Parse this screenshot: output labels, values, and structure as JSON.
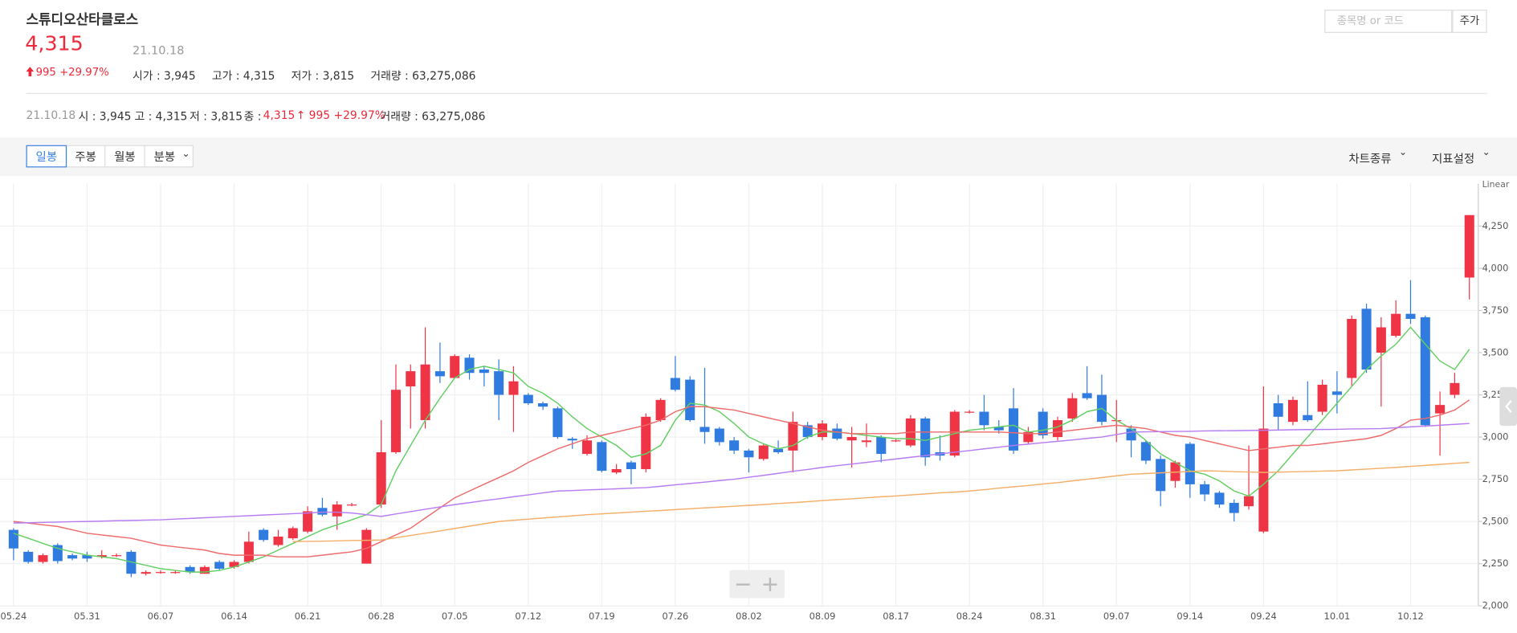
{
  "header": {
    "title": "스튜디오산타클로스",
    "price": "4,315",
    "date": "21.10.18",
    "change": "995 +29.97%",
    "stats": [
      "시가 : 3,945",
      "고가 : 4,315",
      "저가 : 3,815",
      "거래량 : 63,275,086"
    ],
    "search_placeholder": "종목명 or 코드",
    "search_button": "주가"
  },
  "summary": {
    "date": "21.10.18",
    "open": "시 : 3,945",
    "high": "고 : 4,315",
    "low": "저 : 3,815",
    "close_label": "종 :",
    "close": "4,315",
    "change": "↑ 995 +29.97%",
    "volume": "거래량 : 63,275,086"
  },
  "toolbar": {
    "tabs": [
      "일봉",
      "주봉",
      "월봉",
      "분봉"
    ],
    "chart_type": "차트종류",
    "indicator": "지표설정"
  },
  "chart_data": {
    "type": "candlestick",
    "scale_label": "Linear",
    "categories": [
      "05.24",
      null,
      null,
      null,
      null,
      "05.31",
      null,
      null,
      null,
      null,
      "06.07",
      null,
      null,
      null,
      null,
      "06.14",
      null,
      null,
      null,
      null,
      "06.21",
      null,
      null,
      null,
      null,
      "06.28",
      null,
      null,
      null,
      null,
      "07.05",
      null,
      null,
      null,
      null,
      "07.12",
      null,
      null,
      null,
      null,
      "07.19",
      null,
      null,
      null,
      null,
      "07.26",
      null,
      null,
      null,
      null,
      "08.02",
      null,
      null,
      null,
      null,
      "08.09",
      null,
      null,
      null,
      null,
      "08.17",
      null,
      null,
      null,
      null,
      "08.24",
      null,
      null,
      null,
      null,
      "08.31",
      null,
      null,
      null,
      null,
      "09.07",
      null,
      null,
      null,
      null,
      "09.14",
      null,
      null,
      null,
      null,
      "09.24",
      null,
      null,
      null,
      null,
      "10.01",
      null,
      null,
      null,
      null,
      "10.12",
      null,
      null,
      null,
      null
    ],
    "open": [
      2450,
      2320,
      2260,
      2360,
      2300,
      2300,
      2290,
      2300,
      2320,
      2190,
      2200,
      2200,
      2230,
      2190,
      2260,
      2230,
      2260,
      2450,
      2360,
      2400,
      2440,
      2580,
      2530,
      2600,
      2250,
      2600,
      2910,
      3300,
      3100,
      3390,
      3350,
      3470,
      3400,
      3390,
      3250,
      3250,
      3200,
      3170,
      2990,
      2900,
      2970,
      2790,
      2850,
      2810,
      3100,
      3350,
      3340,
      3060,
      3050,
      2980,
      2920,
      2870,
      2930,
      2920,
      3070,
      3000,
      3050,
      2980,
      2970,
      3000,
      2980,
      2950,
      3110,
      2910,
      2890,
      3150,
      3150,
      3060,
      3170,
      2970,
      3150,
      3000,
      3110,
      3260,
      3250,
      3100,
      3050,
      2970,
      2870,
      2740,
      2960,
      2720,
      2670,
      2610,
      2590,
      2440,
      3200,
      3090,
      3130,
      3150,
      3270,
      3350,
      3760,
      3500,
      3600,
      3730,
      3710,
      3140,
      3250,
      3945
    ],
    "high": [
      2460,
      2330,
      2310,
      2370,
      2310,
      2320,
      2330,
      2310,
      2330,
      2210,
      2210,
      2210,
      2240,
      2240,
      2270,
      2270,
      2440,
      2460,
      2450,
      2470,
      2590,
      2640,
      2620,
      2610,
      2460,
      3100,
      3430,
      3430,
      3650,
      3560,
      3490,
      3490,
      3420,
      3460,
      3420,
      3260,
      3210,
      3180,
      3000,
      3010,
      2980,
      2840,
      2860,
      3140,
      3230,
      3480,
      3360,
      3410,
      3060,
      3000,
      2930,
      2960,
      2980,
      3150,
      3090,
      3100,
      3080,
      3060,
      3080,
      3010,
      2990,
      3130,
      3120,
      3010,
      3160,
      3160,
      3250,
      3100,
      3290,
      3060,
      3170,
      3120,
      3260,
      3420,
      3370,
      3220,
      3070,
      2980,
      2890,
      2860,
      2970,
      2740,
      2680,
      2630,
      2950,
      3300,
      3250,
      3240,
      3330,
      3340,
      3390,
      3720,
      3790,
      3710,
      3810,
      3930,
      3720,
      3270,
      3380,
      4315
    ],
    "low": [
      2270,
      2250,
      2250,
      2250,
      2270,
      2260,
      2280,
      2290,
      2170,
      2180,
      2190,
      2190,
      2190,
      2190,
      2210,
      2220,
      2250,
      2380,
      2350,
      2390,
      2430,
      2530,
      2450,
      2590,
      2250,
      2580,
      2900,
      3050,
      3050,
      3320,
      3350,
      3340,
      3300,
      3100,
      3030,
      3190,
      3160,
      2990,
      2930,
      2890,
      2790,
      2780,
      2720,
      2790,
      3090,
      3270,
      3090,
      2960,
      2950,
      2900,
      2790,
      2860,
      2900,
      2790,
      2990,
      2980,
      2980,
      2820,
      2940,
      2850,
      2970,
      2940,
      2830,
      2860,
      2880,
      3140,
      3040,
      3020,
      2900,
      2960,
      2990,
      2980,
      3090,
      3220,
      3070,
      2970,
      2880,
      2840,
      2590,
      2700,
      2640,
      2620,
      2580,
      2500,
      2570,
      2430,
      3040,
      3070,
      3090,
      3130,
      3140,
      3300,
      3380,
      3180,
      3590,
      3670,
      3060,
      2890,
      3230,
      3815
    ],
    "close": [
      2340,
      2260,
      2300,
      2265,
      2280,
      2280,
      2300,
      2300,
      2190,
      2200,
      2200,
      2200,
      2200,
      2230,
      2220,
      2260,
      2380,
      2390,
      2410,
      2460,
      2560,
      2540,
      2600,
      2600,
      2450,
      2910,
      3280,
      3390,
      3430,
      3360,
      3480,
      3380,
      3380,
      3250,
      3330,
      3200,
      3180,
      3000,
      2980,
      2980,
      2800,
      2810,
      2810,
      3120,
      3220,
      3280,
      3100,
      3030,
      2970,
      2920,
      2880,
      2950,
      2910,
      3090,
      3000,
      3080,
      2990,
      3000,
      2980,
      2900,
      2980,
      3110,
      2880,
      2890,
      3150,
      3150,
      3070,
      3040,
      2920,
      3030,
      3010,
      3100,
      3230,
      3230,
      3090,
      3100,
      2980,
      2860,
      2680,
      2850,
      2720,
      2660,
      2600,
      2550,
      2650,
      3050,
      3120,
      3220,
      3100,
      3310,
      3250,
      3700,
      3400,
      3650,
      3730,
      3700,
      3070,
      3190,
      3320,
      4315
    ],
    "up_color": "#ee3445",
    "down_color": "#2f7be0",
    "lines": [
      {
        "color": "#62cf62",
        "values": [
          2430,
          2400,
          2370,
          2340,
          2320,
          2300,
          2290,
          2280,
          2260,
          2240,
          2220,
          2210,
          2200,
          2200,
          2210,
          2230,
          2260,
          2290,
          2330,
          2370,
          2410,
          2450,
          2480,
          2510,
          2540,
          2600,
          2800,
          2950,
          3100,
          3230,
          3350,
          3400,
          3420,
          3400,
          3380,
          3300,
          3260,
          3200,
          3120,
          3050,
          3000,
          2950,
          2880,
          2900,
          2950,
          3100,
          3200,
          3190,
          3150,
          3080,
          3000,
          2960,
          2930,
          2950,
          3000,
          3030,
          3030,
          3020,
          3010,
          3000,
          2990,
          2990,
          2980,
          3000,
          3020,
          3040,
          3050,
          3060,
          3070,
          3030,
          3040,
          3060,
          3100,
          3150,
          3170,
          3100,
          3050,
          2980,
          2900,
          2850,
          2800,
          2780,
          2740,
          2680,
          2650,
          2720,
          2800,
          2900,
          3000,
          3100,
          3200,
          3300,
          3400,
          3480,
          3550,
          3650,
          3550,
          3450,
          3400,
          3520
        ]
      },
      {
        "color": "#ee6b6b",
        "values": [
          2500,
          2490,
          2480,
          2470,
          2450,
          2430,
          2420,
          2410,
          2400,
          2380,
          2360,
          2350,
          2340,
          2330,
          2310,
          2300,
          2300,
          2300,
          2290,
          2290,
          2290,
          2300,
          2310,
          2320,
          2340,
          2380,
          2420,
          2460,
          2520,
          2580,
          2640,
          2680,
          2720,
          2760,
          2800,
          2850,
          2890,
          2930,
          2960,
          2990,
          3010,
          3030,
          3050,
          3070,
          3100,
          3150,
          3180,
          3180,
          3170,
          3160,
          3140,
          3120,
          3100,
          3080,
          3060,
          3040,
          3030,
          3020,
          3020,
          3020,
          3020,
          3030,
          3030,
          3030,
          3030,
          3030,
          3030,
          3030,
          3025,
          3020,
          3020,
          3030,
          3040,
          3050,
          3060,
          3070,
          3060,
          3050,
          3030,
          3010,
          3000,
          2980,
          2960,
          2940,
          2920,
          2930,
          2940,
          2950,
          2950,
          2960,
          2970,
          2980,
          2990,
          3010,
          3050,
          3100,
          3110,
          3130,
          3160,
          3220
        ]
      },
      {
        "color": "#b77cf2",
        "values": [
          2490,
          2492,
          2494,
          2496,
          2498,
          2500,
          2502,
          2504,
          2506,
          2508,
          2510,
          2514,
          2518,
          2522,
          2526,
          2530,
          2534,
          2538,
          2542,
          2546,
          2550,
          2555,
          2555,
          2550,
          2540,
          2530,
          2544,
          2558,
          2572,
          2586,
          2600,
          2611,
          2623,
          2634,
          2646,
          2657,
          2669,
          2680,
          2683,
          2687,
          2690,
          2693,
          2697,
          2700,
          2708,
          2717,
          2725,
          2733,
          2742,
          2750,
          2762,
          2773,
          2785,
          2797,
          2808,
          2820,
          2830,
          2840,
          2850,
          2860,
          2870,
          2880,
          2890,
          2900,
          2910,
          2920,
          2930,
          2940,
          2950,
          2958,
          2967,
          2975,
          2983,
          2992,
          3000,
          3015,
          3030,
          3031,
          3032,
          3033,
          3034,
          3036,
          3037,
          3038,
          3039,
          3040,
          3041,
          3043,
          3044,
          3045,
          3046,
          3048,
          3049,
          3050,
          3055,
          3060,
          3065,
          3070,
          3075,
          3080
        ]
      },
      {
        "color": "#f4ae68",
        "values": [
          null,
          null,
          null,
          null,
          null,
          null,
          null,
          null,
          null,
          null,
          null,
          null,
          null,
          null,
          null,
          null,
          null,
          null,
          null,
          2380,
          2382,
          2383,
          2385,
          2387,
          2388,
          2390,
          2403,
          2417,
          2430,
          2444,
          2458,
          2472,
          2486,
          2500,
          2507,
          2513,
          2520,
          2527,
          2533,
          2540,
          2545,
          2550,
          2555,
          2560,
          2565,
          2570,
          2575,
          2580,
          2585,
          2590,
          2595,
          2600,
          2606,
          2611,
          2617,
          2623,
          2629,
          2634,
          2640,
          2646,
          2651,
          2657,
          2663,
          2669,
          2674,
          2680,
          2688,
          2697,
          2705,
          2713,
          2722,
          2730,
          2740,
          2750,
          2760,
          2770,
          2780,
          2784,
          2788,
          2792,
          2796,
          2800,
          2798,
          2795,
          2793,
          2790,
          2792,
          2794,
          2796,
          2798,
          2800,
          2805,
          2810,
          2815,
          2820,
          2826,
          2832,
          2838,
          2844,
          2850
        ]
      }
    ],
    "ylim": [
      2000,
      4500
    ],
    "yticks": [
      {
        "value": 2000,
        "label": "2,000"
      },
      {
        "value": 2250,
        "label": "2,250"
      },
      {
        "value": 2500,
        "label": "2,500"
      },
      {
        "value": 2750,
        "label": "2,750"
      },
      {
        "value": 3000,
        "label": "3,000"
      },
      {
        "value": 3250,
        "label": "3,250"
      },
      {
        "value": 3500,
        "label": "3,500"
      },
      {
        "value": 3750,
        "label": "3,750"
      },
      {
        "value": 4000,
        "label": "4,000"
      },
      {
        "value": 4250,
        "label": "4,250"
      }
    ],
    "grid": true
  }
}
